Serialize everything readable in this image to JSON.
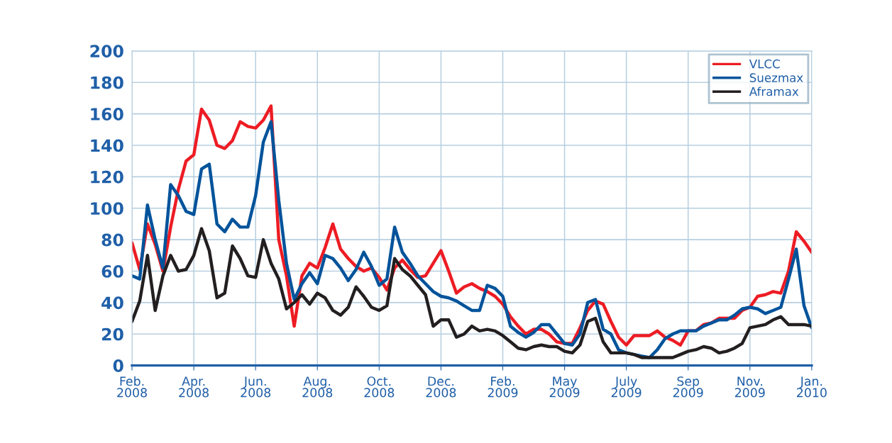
{
  "chart_data": {
    "type": "line",
    "categories": [
      "Feb.\n2008",
      null,
      null,
      null,
      null,
      null,
      null,
      null,
      "Apr.\n2008",
      null,
      null,
      null,
      null,
      null,
      null,
      null,
      "Jun.\n2008",
      null,
      null,
      null,
      null,
      null,
      null,
      null,
      "Aug.\n2008",
      null,
      null,
      null,
      null,
      null,
      null,
      null,
      "Oct.\n2008",
      null,
      null,
      null,
      null,
      null,
      null,
      null,
      "Dec.\n2008",
      null,
      null,
      null,
      null,
      null,
      null,
      null,
      "Feb.\n2009",
      null,
      null,
      null,
      null,
      null,
      null,
      null,
      "May\n2009",
      null,
      null,
      null,
      null,
      null,
      null,
      null,
      "July\n2009",
      null,
      null,
      null,
      null,
      null,
      null,
      null,
      "Sep\n2009",
      null,
      null,
      null,
      null,
      null,
      null,
      null,
      "Nov.\n2009",
      null,
      null,
      null,
      null,
      null,
      null,
      null,
      "Jan.\n2010"
    ],
    "ylim": [
      0,
      200
    ],
    "yticks": [
      0,
      20,
      40,
      60,
      80,
      100,
      120,
      140,
      160,
      180,
      200
    ],
    "grid": true,
    "legend": "top right",
    "marker": "none",
    "line_style": "solid",
    "series": [
      {
        "name": "VLCC",
        "color": "#ed1c24",
        "values": [
          78,
          61,
          90,
          77,
          60,
          88,
          112,
          130,
          134,
          163,
          156,
          140,
          138,
          143,
          155,
          152,
          151,
          156,
          165,
          80,
          57,
          25,
          57,
          65,
          62,
          75,
          90,
          74,
          68,
          63,
          60,
          62,
          56,
          48,
          62,
          67,
          61,
          56,
          57,
          65,
          73,
          60,
          46,
          50,
          52,
          49,
          47,
          44,
          39,
          31,
          25,
          20,
          23,
          23,
          20,
          15,
          14,
          14,
          24,
          35,
          41,
          39,
          28,
          18,
          13,
          19,
          19,
          19,
          22,
          18,
          16,
          13,
          22,
          22,
          26,
          27,
          30,
          30,
          30,
          35,
          37,
          44,
          45,
          47,
          46,
          60,
          85,
          79,
          72
        ]
      },
      {
        "name": "Suezmax",
        "color": "#00539b",
        "values": [
          57,
          55,
          102,
          80,
          62,
          115,
          108,
          98,
          96,
          125,
          128,
          90,
          85,
          93,
          88,
          88,
          108,
          142,
          155,
          105,
          65,
          42,
          52,
          59,
          52,
          70,
          68,
          62,
          54,
          61,
          72,
          63,
          51,
          55,
          88,
          72,
          65,
          57,
          52,
          47,
          44,
          43,
          41,
          38,
          35,
          35,
          51,
          49,
          44,
          25,
          21,
          18,
          21,
          26,
          26,
          20,
          14,
          13,
          20,
          40,
          42,
          23,
          20,
          10,
          8,
          7,
          6,
          5,
          10,
          17,
          20,
          22,
          22,
          22,
          25,
          27,
          29,
          29,
          32,
          36,
          37,
          36,
          33,
          35,
          37,
          55,
          74,
          38,
          24
        ]
      },
      {
        "name": "Aframax",
        "color": "#231f20",
        "values": [
          28,
          41,
          70,
          35,
          57,
          70,
          60,
          61,
          70,
          87,
          73,
          43,
          46,
          76,
          68,
          57,
          56,
          80,
          65,
          55,
          36,
          40,
          45,
          39,
          46,
          43,
          35,
          32,
          37,
          50,
          44,
          37,
          35,
          38,
          68,
          61,
          57,
          51,
          45,
          25,
          29,
          29,
          18,
          20,
          25,
          22,
          23,
          22,
          19,
          15,
          11,
          10,
          12,
          13,
          12,
          12,
          9,
          8,
          13,
          28,
          30,
          15,
          8,
          8,
          8,
          7,
          5,
          5,
          5,
          5,
          5,
          7,
          9,
          10,
          12,
          11,
          8,
          9,
          11,
          14,
          24,
          25,
          26,
          29,
          31,
          26,
          26,
          26,
          25
        ]
      }
    ]
  }
}
